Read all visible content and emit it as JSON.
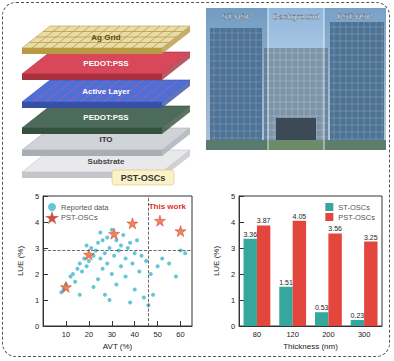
{
  "diagram": {
    "layers": [
      "Ag Grid",
      "PEDOT:PSS",
      "Active Layer",
      "PEDOT:PSS",
      "ITO",
      "Substrate"
    ],
    "label": "PST-OSCs"
  },
  "photo": {
    "labels": [
      "ST-OSC",
      "Background",
      "PST-OSC"
    ]
  },
  "chart_data": [
    {
      "type": "scatter",
      "x_label": "AVT (%)",
      "y_label": "LUE (%)",
      "xlim": [
        0,
        65
      ],
      "xticks": [
        10,
        20,
        30,
        40,
        50,
        60
      ],
      "ylim": [
        0,
        5
      ],
      "yticks": [
        0,
        1,
        2,
        3,
        4,
        5
      ],
      "hlines": [
        2.9
      ],
      "vlines": [
        46
      ],
      "annotations": [
        {
          "text": "This work"
        }
      ],
      "legend": "upper left",
      "grid": false,
      "series": [
        {
          "name": "Reported data",
          "color": "#3db6cc",
          "marker": "circle",
          "x": [
            8,
            9,
            10,
            12,
            13,
            14,
            15,
            16,
            17,
            18,
            19,
            20,
            21,
            22,
            22,
            23,
            24,
            25,
            25,
            26,
            26,
            27,
            27,
            28,
            28,
            29,
            30,
            30,
            31,
            32,
            32,
            33,
            34,
            34,
            35,
            36,
            36,
            37,
            38,
            38,
            39,
            40,
            40,
            41,
            42,
            43,
            44,
            45,
            46,
            47,
            48,
            50,
            52,
            55,
            58,
            60,
            62,
            16,
            19,
            24,
            29
          ],
          "values": [
            1.3,
            1.4,
            1.6,
            1.9,
            2.0,
            1.7,
            2.2,
            2.4,
            2.1,
            2.6,
            2.3,
            2.5,
            3.0,
            2.7,
            1.5,
            2.9,
            3.2,
            2.6,
            3.6,
            2.2,
            3.3,
            2.8,
            1.2,
            3.4,
            2.4,
            3.0,
            2.0,
            3.7,
            2.7,
            3.3,
            1.6,
            2.9,
            3.1,
            2.3,
            3.5,
            2.6,
            1.9,
            3.0,
            3.2,
            0.9,
            2.4,
            2.8,
            1.4,
            3.3,
            2.1,
            2.7,
            1.1,
            2.5,
            0.8,
            2.0,
            1.2,
            2.3,
            2.6,
            2.4,
            1.9,
            2.9,
            2.8,
            1.2,
            3.1,
            1.8,
            1.0
          ]
        },
        {
          "name": "PST-OSCs",
          "color": "#f0642a",
          "marker": "star",
          "x": [
            10,
            20,
            31,
            39,
            51,
            60
          ],
          "values": [
            1.5,
            2.75,
            3.55,
            3.95,
            4.05,
            3.65
          ]
        }
      ]
    },
    {
      "type": "bar",
      "x_label": "Thickness (nm)",
      "y_label": "LUE (%)",
      "categories": [
        "80",
        "120",
        "200",
        "300"
      ],
      "ylim": [
        0,
        5
      ],
      "yticks": [
        0,
        1,
        2,
        3,
        4,
        5
      ],
      "data_labels": true,
      "legend": "upper right",
      "grid": false,
      "series": [
        {
          "name": "ST-OSCs",
          "color": "#35a79c",
          "values": [
            3.36,
            1.51,
            0.53,
            0.23
          ]
        },
        {
          "name": "PST-OSCs",
          "color": "#e2463c",
          "values": [
            3.87,
            4.05,
            3.56,
            3.25
          ]
        }
      ]
    }
  ]
}
